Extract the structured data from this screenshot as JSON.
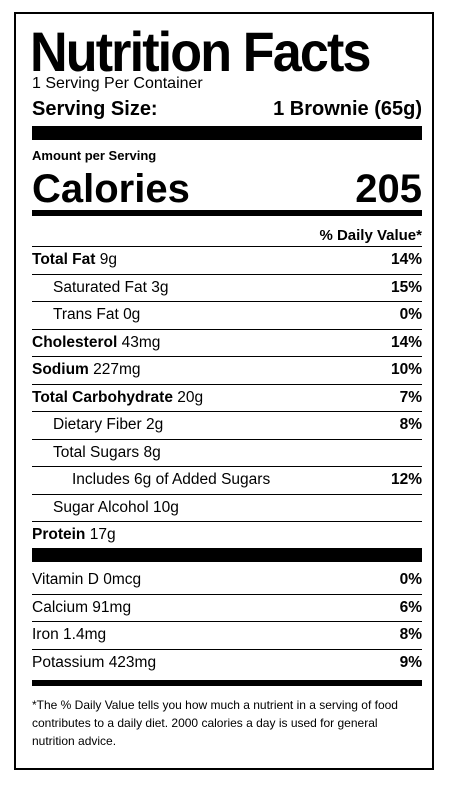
{
  "title": "Nutrition Facts",
  "servings_per_container": "1 Serving Per Container",
  "serving_size": {
    "label": "Serving Size:",
    "value": "1 Brownie (65g)"
  },
  "amount_per_serving": "Amount per Serving",
  "calories": {
    "label": "Calories",
    "value": "205"
  },
  "daily_value_header": "% Daily Value*",
  "nutrients": [
    {
      "name": "Total Fat",
      "amount": "9g",
      "dv": "14%",
      "bold": true
    },
    {
      "name": "Saturated Fat",
      "amount": "3g",
      "dv": "15%"
    },
    {
      "name": "Trans Fat",
      "amount": "0g",
      "dv": "0%"
    },
    {
      "name": "Cholesterol",
      "amount": "43mg",
      "dv": "14%",
      "bold": true
    },
    {
      "name": "Sodium",
      "amount": "227mg",
      "dv": "10%",
      "bold": true
    },
    {
      "name": "Total Carbohydrate",
      "amount": "20g",
      "dv": "7%",
      "bold": true
    },
    {
      "name": "Dietary Fiber",
      "amount": "2g",
      "dv": "8%"
    },
    {
      "name": "Total Sugars",
      "amount": "8g",
      "dv": ""
    },
    {
      "name": "Includes 6g of Added Sugars",
      "amount": "",
      "dv": "12%"
    },
    {
      "name": "Sugar Alcohol",
      "amount": "10g",
      "dv": ""
    },
    {
      "name": "Protein",
      "amount": "17g",
      "dv": "",
      "bold": true
    }
  ],
  "vitamins": [
    {
      "name": "Vitamin D",
      "amount": "0mcg",
      "dv": "0%"
    },
    {
      "name": "Calcium",
      "amount": "91mg",
      "dv": "6%"
    },
    {
      "name": "Iron",
      "amount": "1.4mg",
      "dv": "8%"
    },
    {
      "name": "Potassium",
      "amount": "423mg",
      "dv": "9%"
    }
  ],
  "footnote": "*The % Daily Value tells you how much a nutrient in a serving of food contributes to a daily diet. 2000 calories a day is used for general nutrition advice."
}
